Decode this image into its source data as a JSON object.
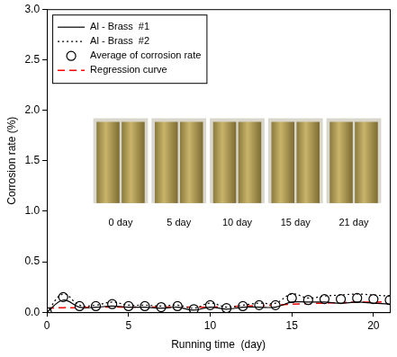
{
  "chart_data": {
    "type": "line",
    "x_label": "Running time  (day)",
    "y_label": "Corrosion rate (%)",
    "x": [
      0,
      1,
      2,
      3,
      4,
      5,
      6,
      7,
      8,
      9,
      10,
      11,
      12,
      13,
      14,
      15,
      16,
      17,
      18,
      19,
      20,
      21
    ],
    "series": [
      {
        "name": "Al - Brass  #1",
        "color": "#000000",
        "line_style": "solid",
        "marker": "none",
        "values": [
          0,
          0.12,
          0.05,
          0.05,
          0.06,
          0.05,
          0.05,
          0.04,
          0.05,
          0.02,
          0.05,
          0.03,
          0.05,
          0.05,
          0.05,
          0.1,
          0.1,
          0.1,
          0.09,
          0.1,
          0.09,
          0.08
        ]
      },
      {
        "name": "Al - Brass  #2",
        "color": "#000000",
        "line_style": "dotted",
        "marker": "none",
        "values": [
          0,
          0.18,
          0.07,
          0.07,
          0.1,
          0.07,
          0.07,
          0.06,
          0.07,
          0.04,
          0.09,
          0.05,
          0.07,
          0.09,
          0.09,
          0.18,
          0.14,
          0.16,
          0.17,
          0.18,
          0.17,
          0.16
        ]
      },
      {
        "name": "Average of corrosion rate",
        "color": "#000000",
        "line_style": "none",
        "marker": "circle",
        "values": [
          0,
          0.15,
          0.06,
          0.06,
          0.08,
          0.06,
          0.06,
          0.05,
          0.06,
          0.03,
          0.07,
          0.04,
          0.06,
          0.07,
          0.07,
          0.14,
          0.12,
          0.13,
          0.13,
          0.14,
          0.13,
          0.12
        ]
      },
      {
        "name": "Regression curve",
        "color": "#ff0000",
        "line_style": "dashed",
        "marker": "none",
        "values": [
          0.04,
          0.045,
          0.045,
          0.05,
          0.05,
          0.05,
          0.05,
          0.05,
          0.05,
          0.05,
          0.05,
          0.055,
          0.06,
          0.065,
          0.07,
          0.08,
          0.085,
          0.09,
          0.095,
          0.1,
          0.1,
          0.105
        ]
      }
    ],
    "xlim": [
      0,
      21
    ],
    "xticks": [
      0,
      5,
      10,
      15,
      20
    ],
    "ylim": [
      0,
      3
    ],
    "yticks": [
      {
        "value": 0,
        "label": "0.0"
      },
      {
        "value": 0.5,
        "label": "0.5"
      },
      {
        "value": 1,
        "label": "1.0"
      },
      {
        "value": 1.5,
        "label": "1.5"
      },
      {
        "value": 2,
        "label": "2.0"
      },
      {
        "value": 2.5,
        "label": "2.5"
      },
      {
        "value": 3,
        "label": "3.0"
      }
    ],
    "annotations": [
      "0 day",
      "5 day",
      "10 day",
      "15 day",
      "21 day"
    ],
    "legend": "upper left",
    "grid": false
  }
}
